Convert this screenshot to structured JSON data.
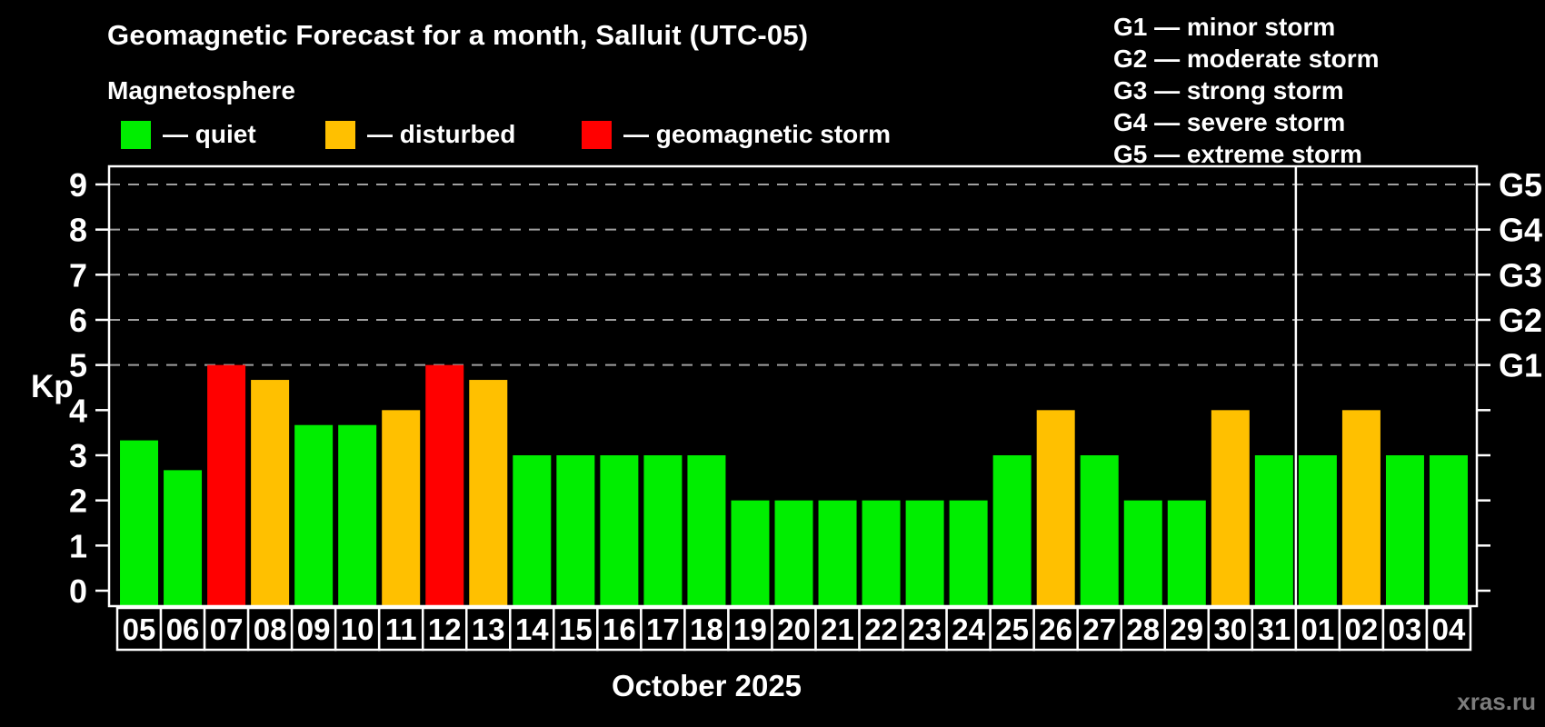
{
  "title": "Geomagnetic Forecast for a month, Salluit (UTC-05)",
  "subtitle": "Magnetosphere",
  "legend": {
    "items": [
      {
        "label": "— quiet",
        "state": "quiet",
        "color": "#00ee00"
      },
      {
        "label": "— disturbed",
        "state": "disturbed",
        "color": "#ffc000"
      },
      {
        "label": "— geomagnetic storm",
        "state": "storm",
        "color": "#ff0000"
      }
    ]
  },
  "storm_scale": [
    "G1 — minor storm",
    "G2 — moderate storm",
    "G3 — strong storm",
    "G4 — severe storm",
    "G5 — extreme storm"
  ],
  "watermark": "xras.ru",
  "colors": {
    "background": "#000000",
    "axis": "#ffffff",
    "grid": "#a0a0a0",
    "text": "#ffffff",
    "quiet": "#00ee00",
    "disturbed": "#ffc000",
    "storm": "#ff0000",
    "watermark": "#7d7d7d"
  },
  "chart_data": {
    "type": "bar",
    "title": "Geomagnetic Forecast for a month, Salluit (UTC-05)",
    "ylabel": "Kp",
    "ylim": [
      -0.35,
      9.4
    ],
    "yaxis_left_ticks": [
      0,
      1,
      2,
      3,
      4,
      5,
      6,
      7,
      8,
      9
    ],
    "yaxis_right_labels": [
      {
        "kp": 5,
        "label": "G1"
      },
      {
        "kp": 6,
        "label": "G2"
      },
      {
        "kp": 7,
        "label": "G3"
      },
      {
        "kp": 8,
        "label": "G4"
      },
      {
        "kp": 9,
        "label": "G5"
      }
    ],
    "gridlines_kp": [
      5,
      6,
      7,
      8,
      9
    ],
    "grid_style": "dashed",
    "legend_position": "top-left",
    "month_label": "October 2025",
    "month_separator_after_day": "31",
    "bars": [
      {
        "day": "05",
        "kp": 3.33,
        "state": "quiet"
      },
      {
        "day": "06",
        "kp": 2.67,
        "state": "quiet"
      },
      {
        "day": "07",
        "kp": 5.0,
        "state": "storm"
      },
      {
        "day": "08",
        "kp": 4.67,
        "state": "disturbed"
      },
      {
        "day": "09",
        "kp": 3.67,
        "state": "quiet"
      },
      {
        "day": "10",
        "kp": 3.67,
        "state": "quiet"
      },
      {
        "day": "11",
        "kp": 4.0,
        "state": "disturbed"
      },
      {
        "day": "12",
        "kp": 5.0,
        "state": "storm"
      },
      {
        "day": "13",
        "kp": 4.67,
        "state": "disturbed"
      },
      {
        "day": "14",
        "kp": 3.0,
        "state": "quiet"
      },
      {
        "day": "15",
        "kp": 3.0,
        "state": "quiet"
      },
      {
        "day": "16",
        "kp": 3.0,
        "state": "quiet"
      },
      {
        "day": "17",
        "kp": 3.0,
        "state": "quiet"
      },
      {
        "day": "18",
        "kp": 3.0,
        "state": "quiet"
      },
      {
        "day": "19",
        "kp": 2.0,
        "state": "quiet"
      },
      {
        "day": "20",
        "kp": 2.0,
        "state": "quiet"
      },
      {
        "day": "21",
        "kp": 2.0,
        "state": "quiet"
      },
      {
        "day": "22",
        "kp": 2.0,
        "state": "quiet"
      },
      {
        "day": "23",
        "kp": 2.0,
        "state": "quiet"
      },
      {
        "day": "24",
        "kp": 2.0,
        "state": "quiet"
      },
      {
        "day": "25",
        "kp": 3.0,
        "state": "quiet"
      },
      {
        "day": "26",
        "kp": 4.0,
        "state": "disturbed"
      },
      {
        "day": "27",
        "kp": 3.0,
        "state": "quiet"
      },
      {
        "day": "28",
        "kp": 2.0,
        "state": "quiet"
      },
      {
        "day": "29",
        "kp": 2.0,
        "state": "quiet"
      },
      {
        "day": "30",
        "kp": 4.0,
        "state": "disturbed"
      },
      {
        "day": "31",
        "kp": 3.0,
        "state": "quiet"
      },
      {
        "day": "01",
        "kp": 3.0,
        "state": "quiet"
      },
      {
        "day": "02",
        "kp": 4.0,
        "state": "disturbed"
      },
      {
        "day": "03",
        "kp": 3.0,
        "state": "quiet"
      },
      {
        "day": "04",
        "kp": 3.0,
        "state": "quiet"
      }
    ]
  }
}
